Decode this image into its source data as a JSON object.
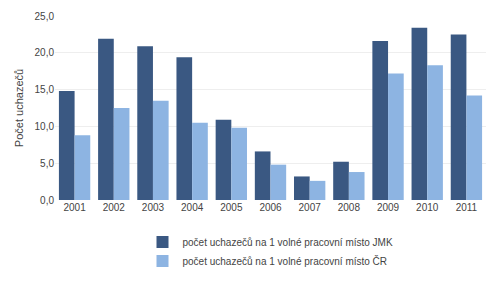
{
  "chart_data": {
    "type": "bar",
    "ylabel": "Počet uchazečů",
    "categories": [
      "2001",
      "2002",
      "2003",
      "2004",
      "2005",
      "2006",
      "2007",
      "2008",
      "2009",
      "2010",
      "2011"
    ],
    "series": [
      {
        "name": "počet uchazečů na 1 volné pracovní místo JMK",
        "color": "#3A5882",
        "values": [
          14.8,
          21.9,
          20.9,
          19.4,
          10.9,
          6.6,
          3.2,
          5.2,
          21.6,
          23.4,
          22.5
        ]
      },
      {
        "name": "počet uchazečů na 1 volné pracovní místo ČR",
        "color": "#8DB4E2",
        "values": [
          8.8,
          12.5,
          13.5,
          10.5,
          9.8,
          4.8,
          2.6,
          3.8,
          17.2,
          18.3,
          14.2
        ]
      }
    ],
    "ylim": [
      0,
      25
    ],
    "yticks": [
      {
        "value": 0.0,
        "label": "0,0"
      },
      {
        "value": 5.0,
        "label": "5,0"
      },
      {
        "value": 10.0,
        "label": "10,0"
      },
      {
        "value": 15.0,
        "label": "15,0"
      },
      {
        "value": 20.0,
        "label": "20,0"
      },
      {
        "value": 25.0,
        "label": "25,0"
      }
    ],
    "grid": true,
    "legend": "bottom"
  }
}
